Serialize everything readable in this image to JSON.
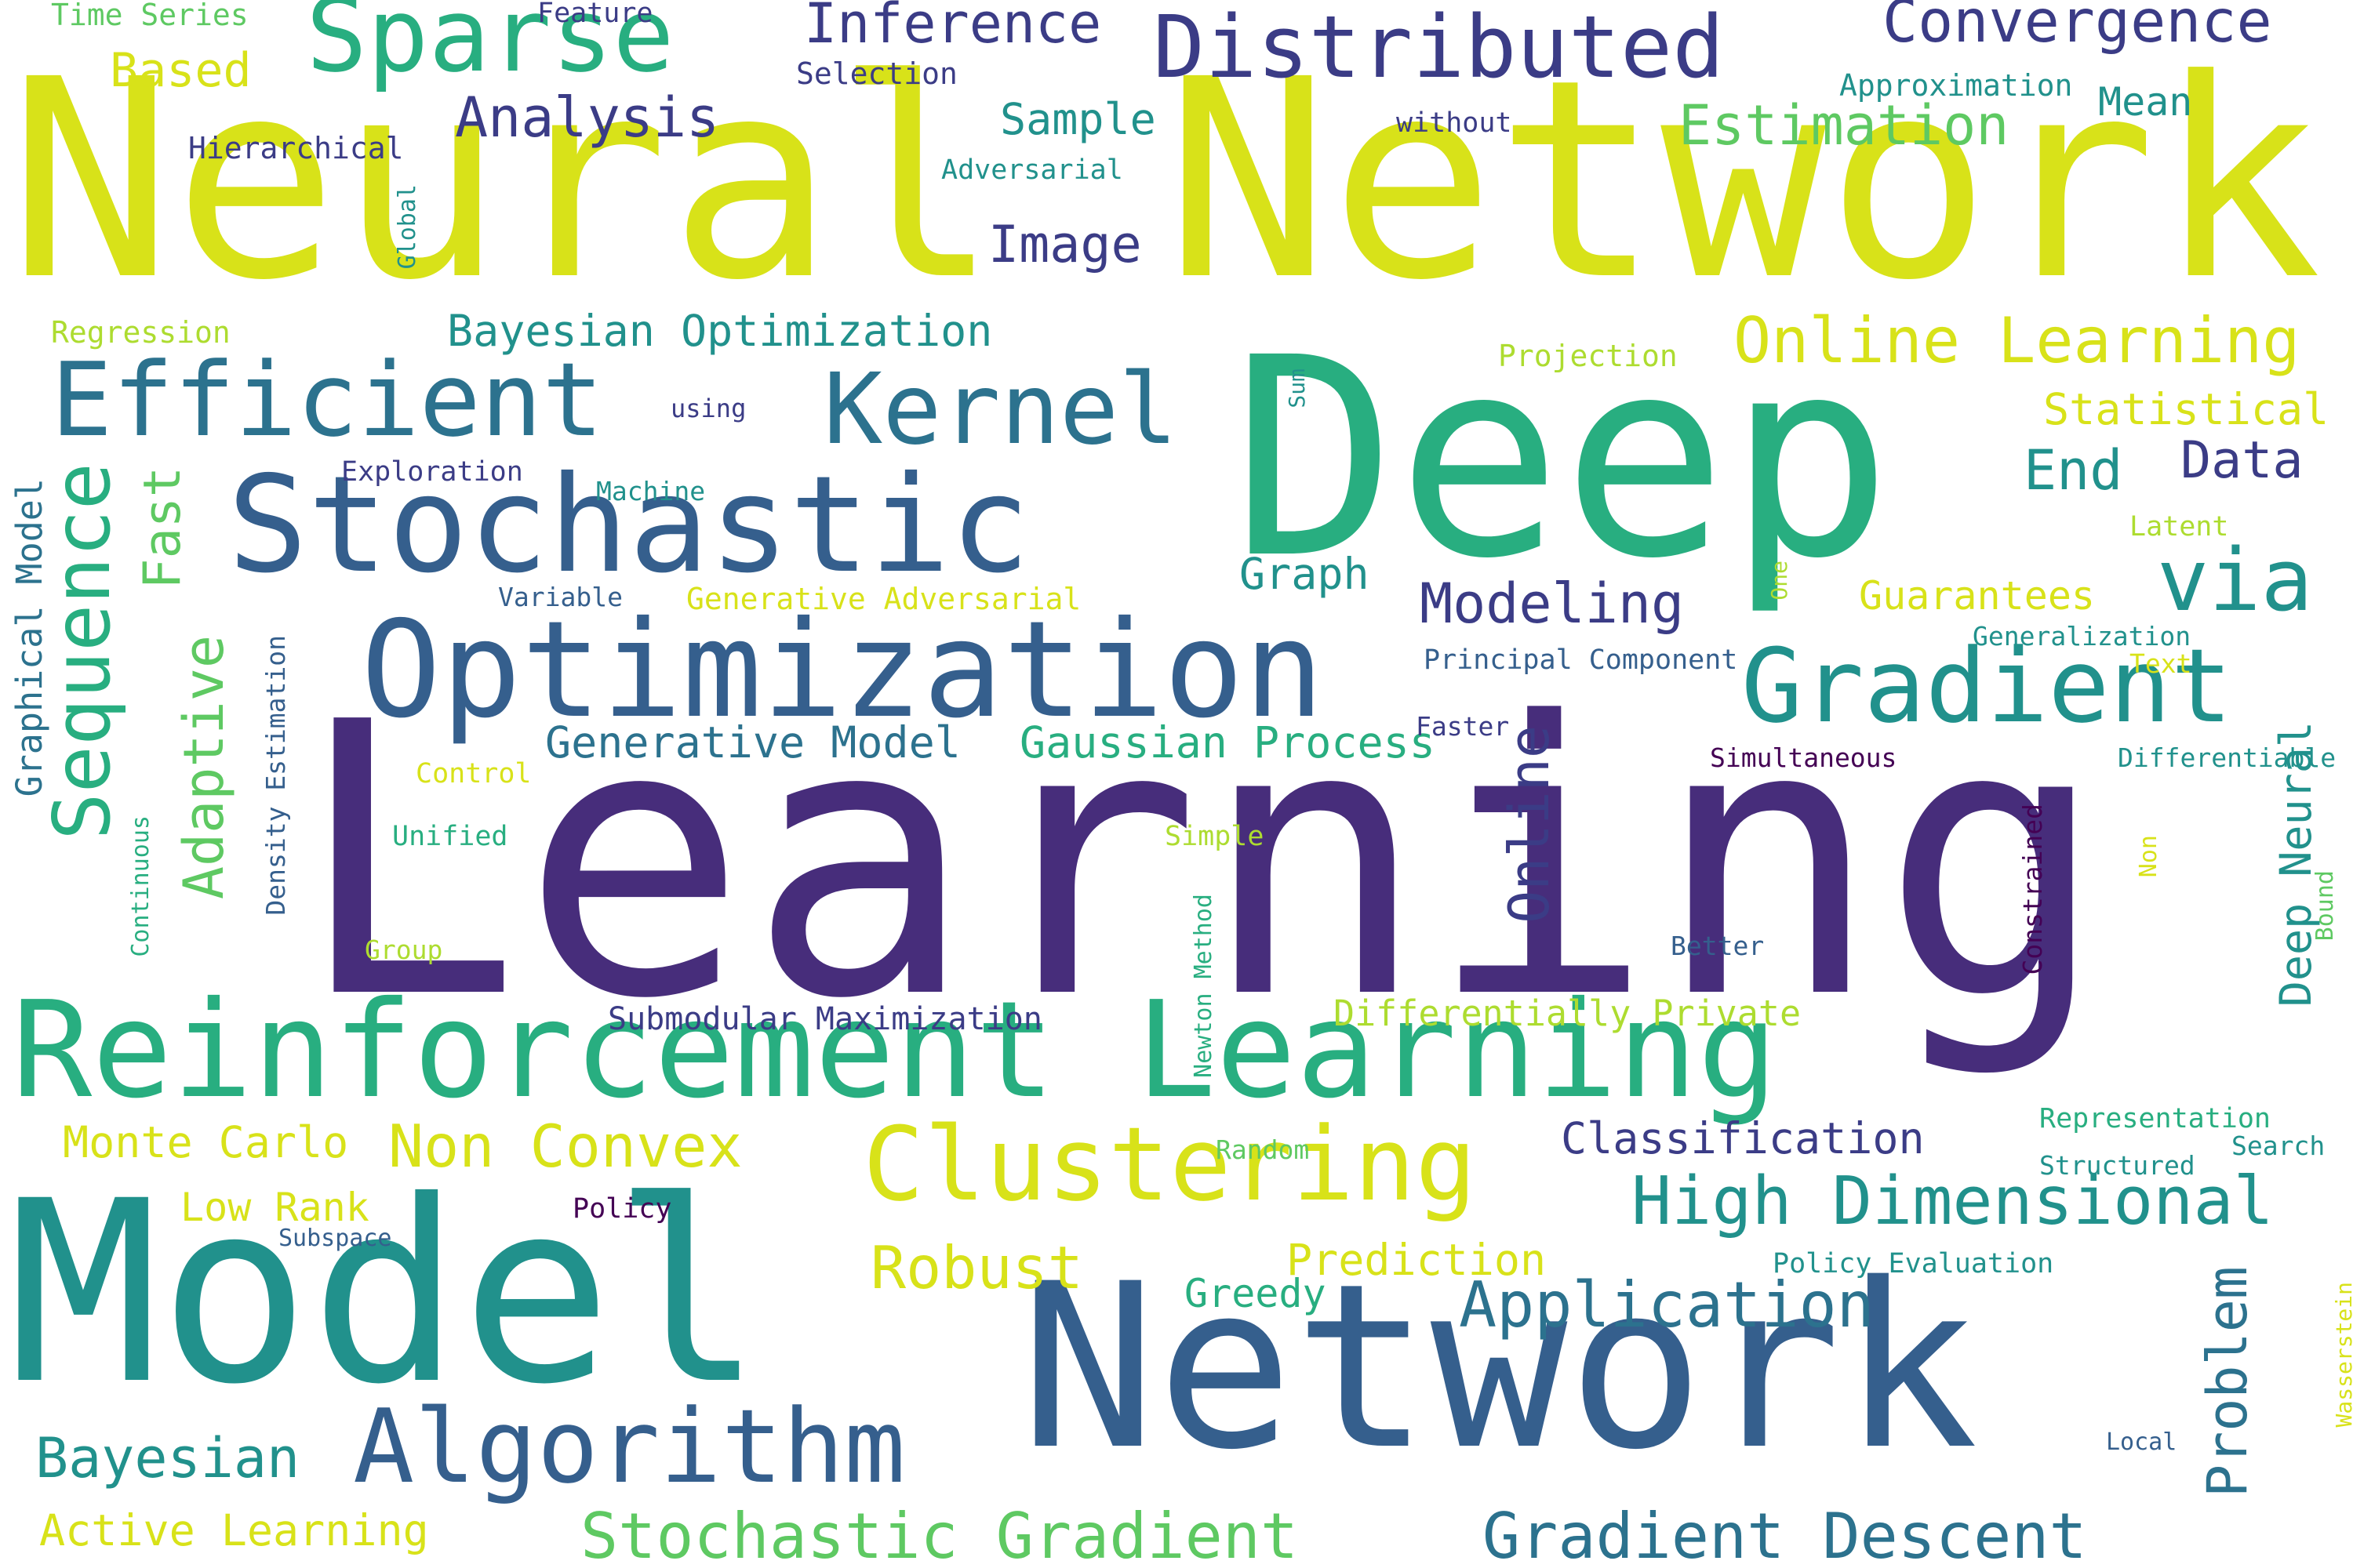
{
  "palette": {
    "dark-purple": "#472d7b",
    "indigo": "#3b3c86",
    "blue": "#355f8d",
    "steel-blue": "#2c728e",
    "teal": "#21918c",
    "green-teal": "#28ae80",
    "green": "#5ec962",
    "lime": "#addc30",
    "yellow": "#d8e219",
    "deep-purple": "#440154"
  },
  "words": [
    {
      "text": "Learning"
    },
    {
      "text": "Neural Network"
    },
    {
      "text": "Deep"
    },
    {
      "text": "Model"
    },
    {
      "text": "Network"
    },
    {
      "text": "Reinforcement Learning"
    },
    {
      "text": "Optimization"
    },
    {
      "text": "Stochastic"
    },
    {
      "text": "Algorithm"
    },
    {
      "text": "Clustering"
    },
    {
      "text": "Gradient"
    },
    {
      "text": "Efficient"
    },
    {
      "text": "Distributed"
    },
    {
      "text": "Kernel"
    },
    {
      "text": "Sparse"
    },
    {
      "text": "via"
    },
    {
      "text": "Sequence"
    },
    {
      "text": "High Dimensional"
    },
    {
      "text": "Gradient Descent"
    },
    {
      "text": "Stochastic Gradient"
    },
    {
      "text": "Online Learning"
    },
    {
      "text": "Application"
    },
    {
      "text": "Convergence"
    },
    {
      "text": "Non Convex"
    },
    {
      "text": "Robust"
    },
    {
      "text": "Bayesian"
    },
    {
      "text": "Adaptive"
    },
    {
      "text": "Inference"
    },
    {
      "text": "Analysis"
    },
    {
      "text": "Estimation"
    },
    {
      "text": "Modeling"
    },
    {
      "text": "Online"
    },
    {
      "text": "Problem"
    },
    {
      "text": "Image"
    },
    {
      "text": "Bayesian Optimization"
    },
    {
      "text": "Active Learning"
    },
    {
      "text": "Generative Model"
    },
    {
      "text": "Gaussian Process"
    },
    {
      "text": "Data"
    },
    {
      "text": "End"
    },
    {
      "text": "Statistical"
    },
    {
      "text": "Based"
    },
    {
      "text": "Fast"
    },
    {
      "text": "Classification"
    },
    {
      "text": "Monte Carlo"
    },
    {
      "text": "Prediction"
    },
    {
      "text": "Deep Neural"
    },
    {
      "text": "Graph"
    },
    {
      "text": "Sample"
    },
    {
      "text": "Guarantees"
    },
    {
      "text": "Low Rank"
    },
    {
      "text": "Greedy"
    },
    {
      "text": "Mean"
    },
    {
      "text": "Graphical Model"
    },
    {
      "text": "Differentially Private"
    },
    {
      "text": "Submodular Maximization"
    },
    {
      "text": "Hierarchical"
    },
    {
      "text": "Time Series"
    },
    {
      "text": "Feature"
    },
    {
      "text": "Selection"
    },
    {
      "text": "Approximation"
    },
    {
      "text": "without"
    },
    {
      "text": "Adversarial"
    },
    {
      "text": "Global"
    },
    {
      "text": "Regression"
    },
    {
      "text": "Projection"
    },
    {
      "text": "Sum"
    },
    {
      "text": "using"
    },
    {
      "text": "Exploration"
    },
    {
      "text": "Machine"
    },
    {
      "text": "Variable"
    },
    {
      "text": "Generative Adversarial"
    },
    {
      "text": "Principal Component"
    },
    {
      "text": "Latent"
    },
    {
      "text": "One"
    },
    {
      "text": "Generalization"
    },
    {
      "text": "Text"
    },
    {
      "text": "Faster"
    },
    {
      "text": "Simultaneous"
    },
    {
      "text": "Differentiable"
    },
    {
      "text": "Control"
    },
    {
      "text": "Density Estimation"
    },
    {
      "text": "Continuous"
    },
    {
      "text": "Unified"
    },
    {
      "text": "Simple"
    },
    {
      "text": "Group"
    },
    {
      "text": "Newton Method"
    },
    {
      "text": "Better"
    },
    {
      "text": "Constrained"
    },
    {
      "text": "Non"
    },
    {
      "text": "Bound"
    },
    {
      "text": "Representation"
    },
    {
      "text": "Search"
    },
    {
      "text": "Random"
    },
    {
      "text": "Structured"
    },
    {
      "text": "Policy"
    },
    {
      "text": "Subspace"
    },
    {
      "text": "Policy Evaluation"
    },
    {
      "text": "Wasserstein"
    },
    {
      "text": "Local"
    }
  ]
}
